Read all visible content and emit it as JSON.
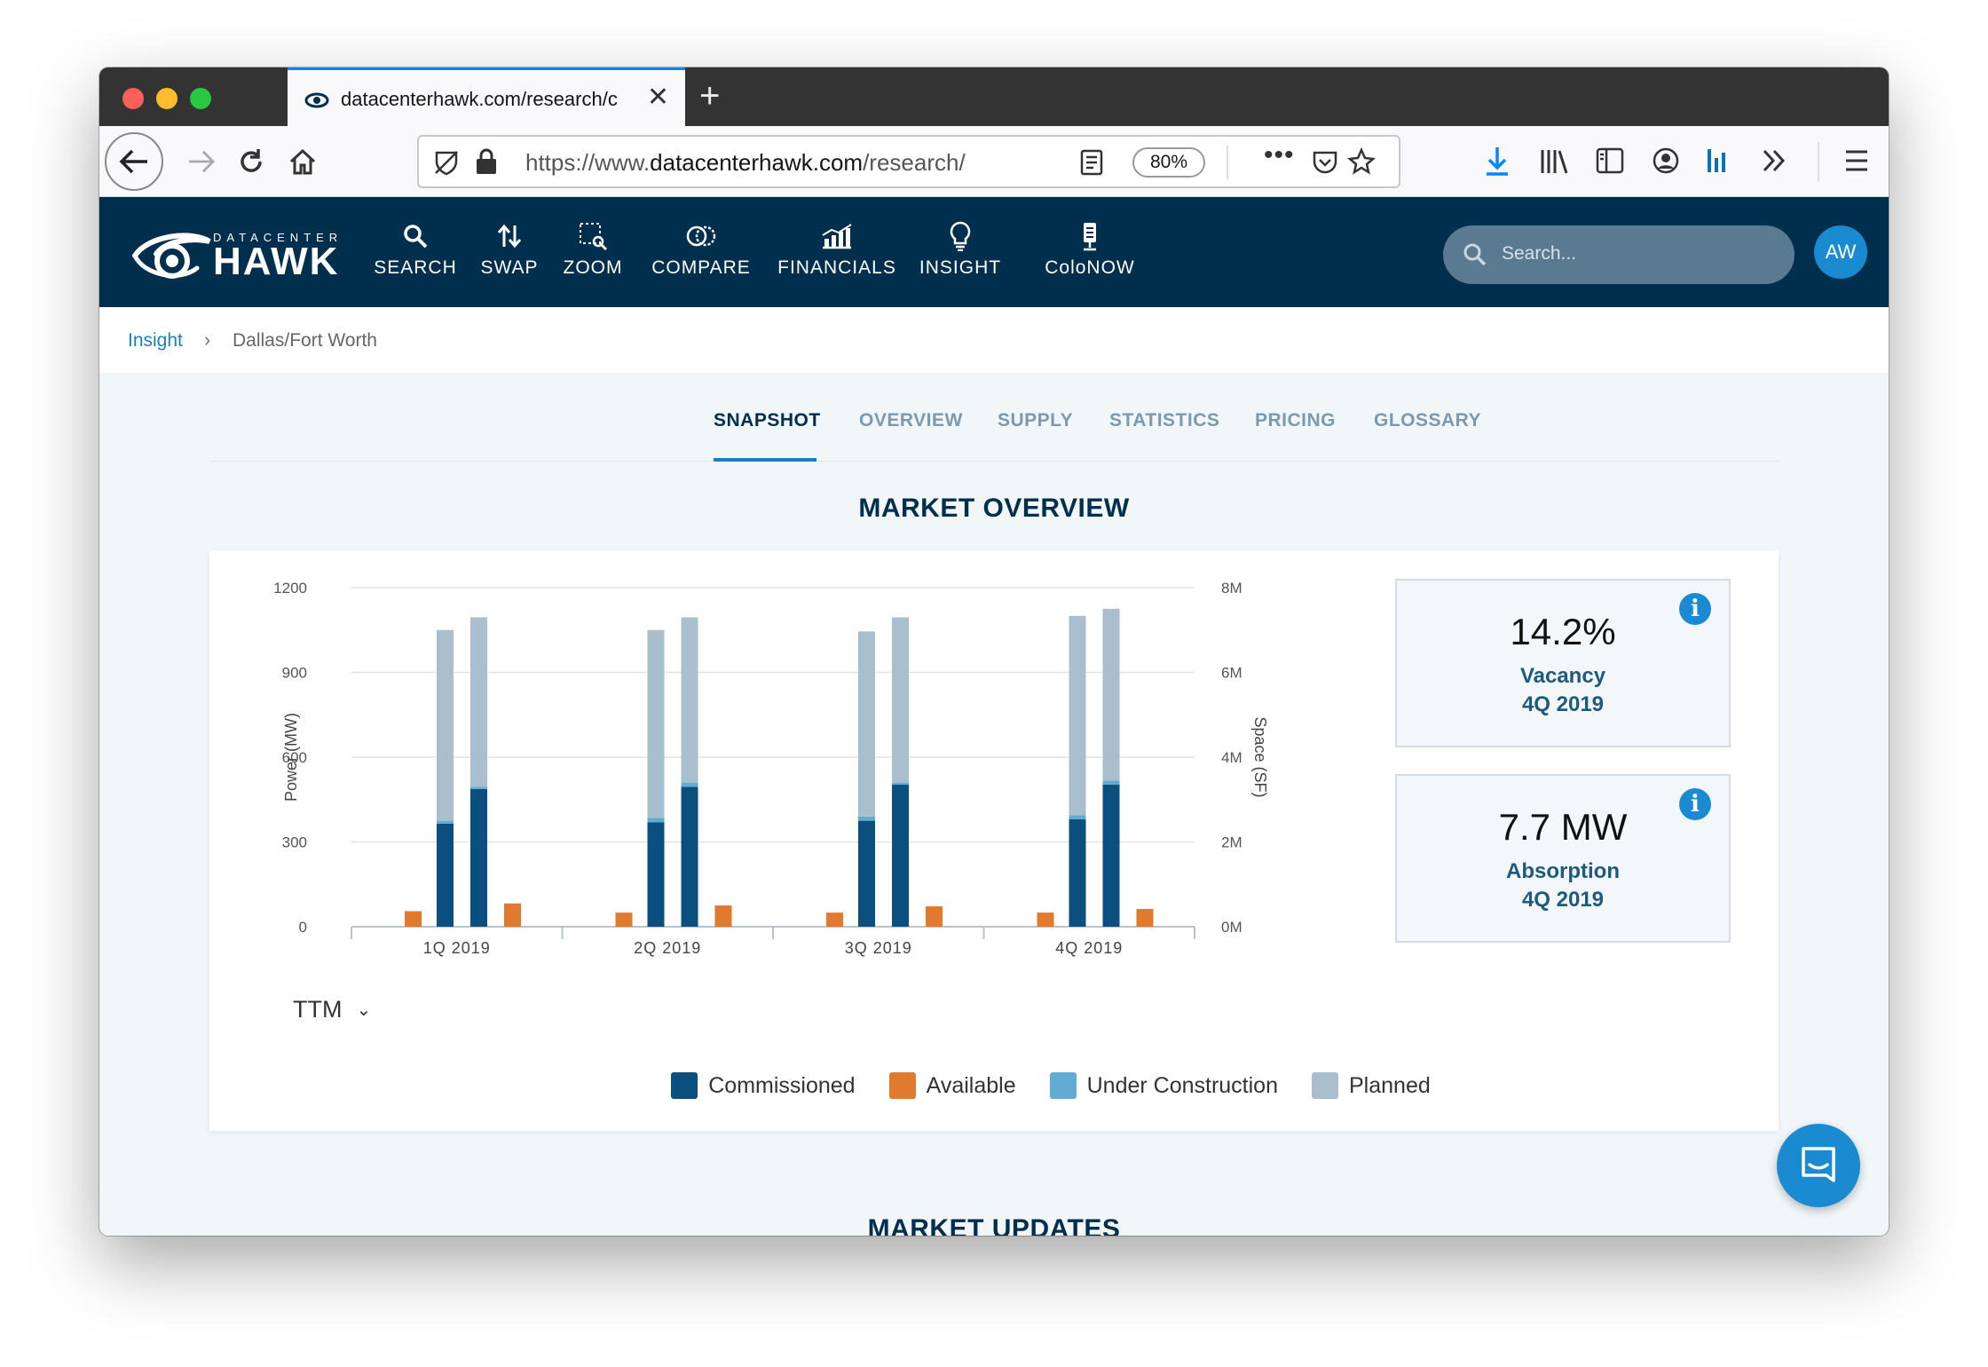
{
  "browser": {
    "tab_title": "datacenterhawk.com/research/c",
    "url_prefix": "https://www.",
    "url_domain": "datacenterhawk.com",
    "url_path": "/research/",
    "zoom": "80%"
  },
  "site": {
    "logo_small": "DATACENTER",
    "logo_big": "HAWK",
    "nav": [
      {
        "label": "SEARCH",
        "icon": "search-icon"
      },
      {
        "label": "SWAP",
        "icon": "swap-icon"
      },
      {
        "label": "ZOOM",
        "icon": "zoom-icon"
      },
      {
        "label": "COMPARE",
        "icon": "compare-icon"
      },
      {
        "label": "FINANCIALS",
        "icon": "financials-icon"
      },
      {
        "label": "INSIGHT",
        "icon": "lightbulb-icon"
      },
      {
        "label": "ColoNOW",
        "icon": "colonow-icon"
      }
    ],
    "search_placeholder": "Search...",
    "avatar_initials": "AW"
  },
  "breadcrumb": {
    "items": [
      "Insight",
      "Dallas/Fort Worth"
    ]
  },
  "subtabs": [
    "SNAPSHOT",
    "OVERVIEW",
    "SUPPLY",
    "STATISTICS",
    "PRICING",
    "GLOSSARY"
  ],
  "active_subtab": "SNAPSHOT",
  "section_title": "MARKET OVERVIEW",
  "period_select": "TTM",
  "stats": [
    {
      "value": "14.2%",
      "label": "Vacancy",
      "period": "4Q 2019"
    },
    {
      "value": "7.7 MW",
      "label": "Absorption",
      "period": "4Q 2019"
    }
  ],
  "next_section_title": "MARKET UPDATES",
  "colors": {
    "commissioned": "#0a4f7e",
    "available": "#e07a2e",
    "under_construction": "#62acd4",
    "planned": "#a9bfcd",
    "header_bg": "#002e4d"
  },
  "chart_data": {
    "type": "bar",
    "categories": [
      "1Q 2019",
      "2Q 2019",
      "3Q 2019",
      "4Q 2019"
    ],
    "ylabel": "Power (MW)",
    "y2label": "Space (SF)",
    "ylim": [
      0,
      1200
    ],
    "y_ticks": [
      "0",
      "300",
      "600",
      "900",
      "1200"
    ],
    "y2lim": [
      0,
      8000000
    ],
    "y2_ticks": [
      "0M",
      "2M",
      "4M",
      "6M",
      "8M"
    ],
    "legend": [
      "Commissioned",
      "Available",
      "Under Construction",
      "Planned"
    ],
    "legend_position": "bottom",
    "grid": true,
    "power_series": [
      {
        "name": "Commissioned",
        "values": [
          365,
          370,
          375,
          380
        ]
      },
      {
        "name": "Under Construction",
        "values": [
          10,
          15,
          15,
          15
        ]
      },
      {
        "name": "Planned",
        "values": [
          675,
          665,
          655,
          705
        ]
      }
    ],
    "space_series": [
      {
        "name": "Commissioned",
        "values": [
          3250000,
          3300000,
          3350000,
          3350000
        ]
      },
      {
        "name": "Under Construction",
        "values": [
          50000,
          100000,
          50000,
          100000
        ]
      },
      {
        "name": "Planned",
        "values": [
          4000000,
          3900000,
          3900000,
          4050000
        ]
      }
    ],
    "available_power": [
      55,
      50,
      50,
      50
    ],
    "available_space": [
      550000,
      500000,
      480000,
      420000
    ]
  }
}
